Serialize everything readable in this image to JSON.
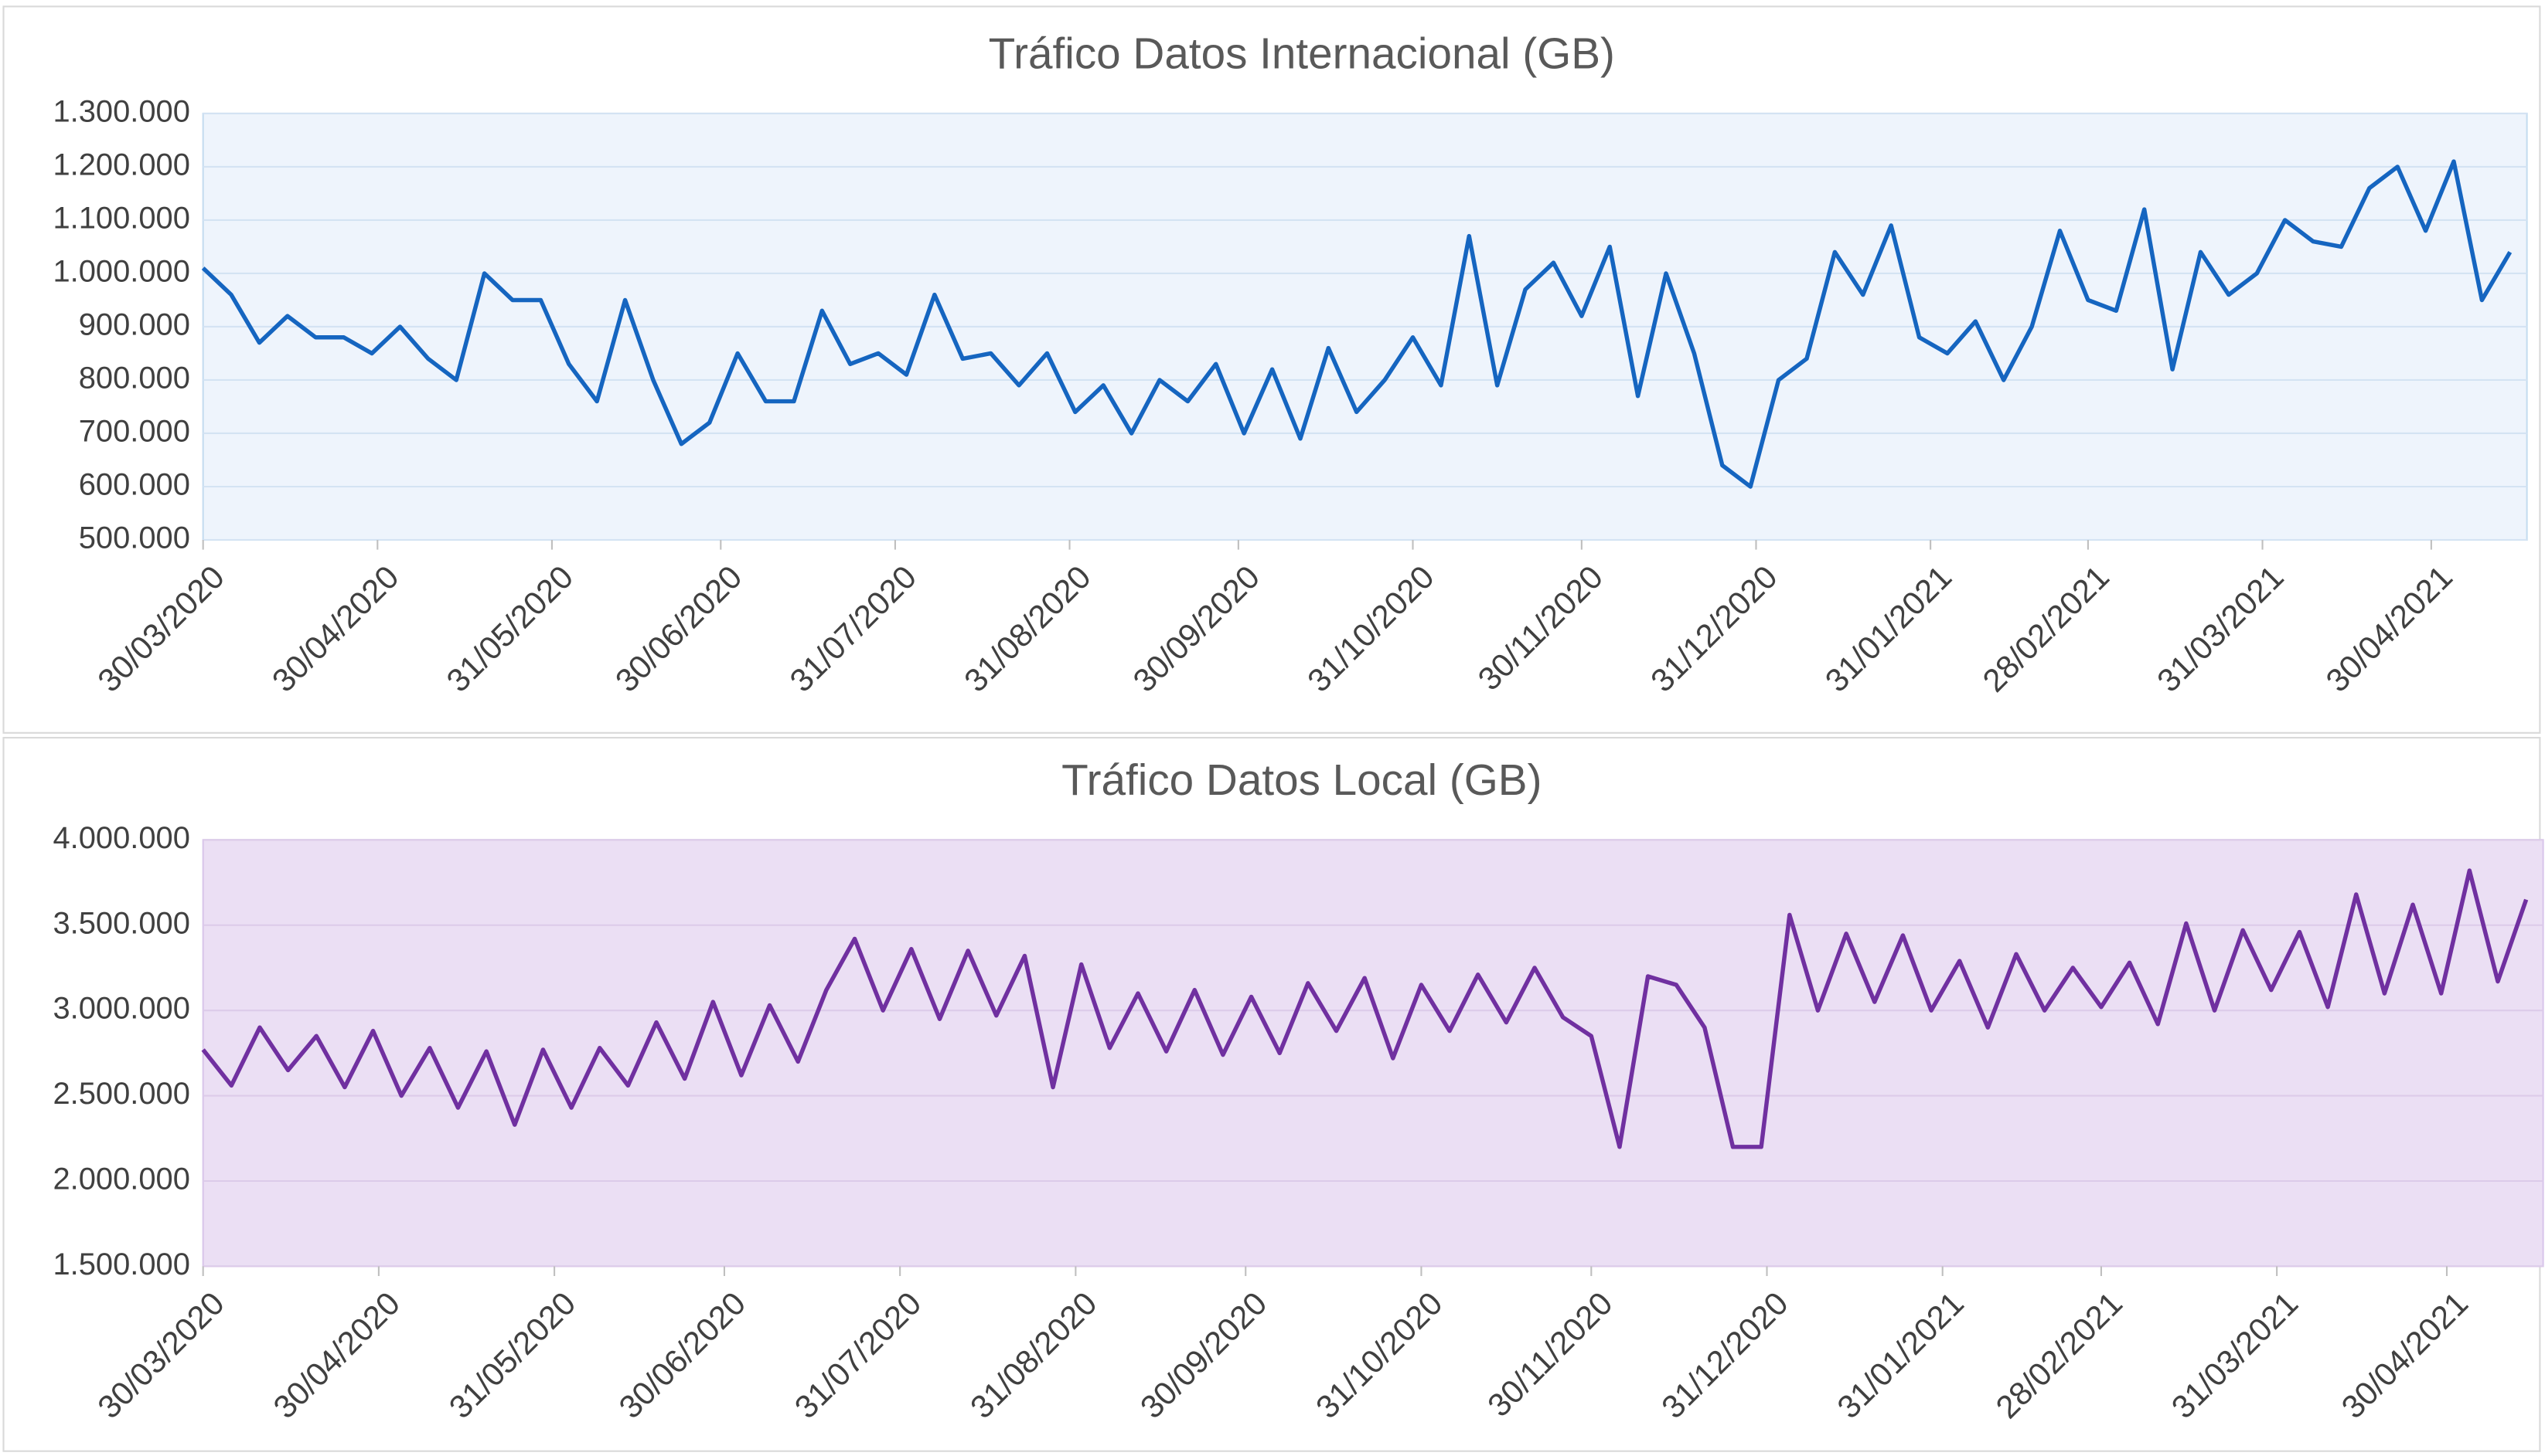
{
  "chart_data": [
    {
      "type": "line",
      "title": "Tráfico Datos  Internacional (GB)",
      "color": "#1565c0",
      "background": "#eef4fc",
      "grid": true,
      "x": [
        "30/03/2020",
        "04/04/2020",
        "09/04/2020",
        "14/04/2020",
        "19/04/2020",
        "24/04/2020",
        "29/04/2020",
        "04/05/2020",
        "09/05/2020",
        "14/05/2020",
        "19/05/2020",
        "24/05/2020",
        "29/05/2020",
        "03/06/2020",
        "08/06/2020",
        "13/06/2020",
        "18/06/2020",
        "23/06/2020",
        "28/06/2020",
        "03/07/2020",
        "08/07/2020",
        "13/07/2020",
        "18/07/2020",
        "23/07/2020",
        "28/07/2020",
        "02/08/2020",
        "07/08/2020",
        "12/08/2020",
        "17/08/2020",
        "22/08/2020",
        "27/08/2020",
        "01/09/2020",
        "06/09/2020",
        "11/09/2020",
        "16/09/2020",
        "21/09/2020",
        "26/09/2020",
        "01/10/2020",
        "06/10/2020",
        "11/10/2020",
        "16/10/2020",
        "21/10/2020",
        "26/10/2020",
        "31/10/2020",
        "05/11/2020",
        "10/11/2020",
        "15/11/2020",
        "20/11/2020",
        "25/11/2020",
        "30/11/2020",
        "05/12/2020",
        "10/12/2020",
        "15/12/2020",
        "20/12/2020",
        "25/12/2020",
        "30/12/2020",
        "04/01/2021",
        "09/01/2021",
        "14/01/2021",
        "19/01/2021",
        "24/01/2021",
        "29/01/2021",
        "03/02/2021",
        "08/02/2021",
        "13/02/2021",
        "18/02/2021",
        "23/02/2021",
        "28/02/2021",
        "05/03/2021",
        "10/03/2021",
        "15/03/2021",
        "20/03/2021",
        "25/03/2021",
        "30/03/2021",
        "04/04/2021",
        "09/04/2021",
        "14/04/2021",
        "19/04/2021",
        "24/04/2021",
        "29/04/2021",
        "04/05/2021",
        "09/05/2021",
        "14/05/2021"
      ],
      "values": [
        1010000,
        960000,
        870000,
        920000,
        880000,
        880000,
        850000,
        900000,
        840000,
        800000,
        1000000,
        950000,
        950000,
        830000,
        760000,
        950000,
        800000,
        680000,
        720000,
        850000,
        760000,
        760000,
        930000,
        830000,
        850000,
        810000,
        960000,
        840000,
        850000,
        790000,
        850000,
        740000,
        790000,
        700000,
        800000,
        760000,
        830000,
        700000,
        820000,
        690000,
        860000,
        740000,
        800000,
        880000,
        790000,
        1070000,
        790000,
        970000,
        1020000,
        920000,
        1050000,
        770000,
        1000000,
        850000,
        640000,
        600000,
        800000,
        840000,
        1040000,
        960000,
        1090000,
        880000,
        850000,
        910000,
        800000,
        900000,
        1080000,
        950000,
        930000,
        1120000,
        820000,
        1040000,
        960000,
        1000000,
        1100000,
        1060000,
        1050000,
        1160000,
        1200000,
        1080000,
        1210000,
        950000,
        1040000
      ],
      "xlim": [
        "30/03/2020",
        "17/05/2021"
      ],
      "xticks": [
        "30/03/2020",
        "30/04/2020",
        "31/05/2020",
        "30/06/2020",
        "31/07/2020",
        "31/08/2020",
        "30/09/2020",
        "31/10/2020",
        "30/11/2020",
        "31/12/2020",
        "31/01/2021",
        "28/02/2021",
        "31/03/2021",
        "30/04/2021"
      ],
      "ylim": [
        500000,
        1300000
      ],
      "yticks": [
        {
          "value": 500000,
          "label": "500.000"
        },
        {
          "value": 600000,
          "label": "600.000"
        },
        {
          "value": 700000,
          "label": "700.000"
        },
        {
          "value": 800000,
          "label": "800.000"
        },
        {
          "value": 900000,
          "label": "900.000"
        },
        {
          "value": 1000000,
          "label": "1.000.000"
        },
        {
          "value": 1100000,
          "label": "1.100.000"
        },
        {
          "value": 1200000,
          "label": "1.200.000"
        },
        {
          "value": 1300000,
          "label": "1.300.000"
        }
      ]
    },
    {
      "type": "line",
      "title": "Tráfico Datos  Local (GB)",
      "color": "#7030a0",
      "background": "#ebdff4",
      "grid": true,
      "x": [
        "30/03/2020",
        "04/04/2020",
        "09/04/2020",
        "14/04/2020",
        "19/04/2020",
        "24/04/2020",
        "29/04/2020",
        "04/05/2020",
        "09/05/2020",
        "14/05/2020",
        "19/05/2020",
        "24/05/2020",
        "29/05/2020",
        "03/06/2020",
        "08/06/2020",
        "13/06/2020",
        "18/06/2020",
        "23/06/2020",
        "28/06/2020",
        "03/07/2020",
        "08/07/2020",
        "13/07/2020",
        "18/07/2020",
        "23/07/2020",
        "28/07/2020",
        "02/08/2020",
        "07/08/2020",
        "12/08/2020",
        "17/08/2020",
        "22/08/2020",
        "27/08/2020",
        "01/09/2020",
        "06/09/2020",
        "11/09/2020",
        "16/09/2020",
        "21/09/2020",
        "26/09/2020",
        "01/10/2020",
        "06/10/2020",
        "11/10/2020",
        "16/10/2020",
        "21/10/2020",
        "26/10/2020",
        "31/10/2020",
        "05/11/2020",
        "10/11/2020",
        "15/11/2020",
        "20/11/2020",
        "25/11/2020",
        "30/11/2020",
        "05/12/2020",
        "10/12/2020",
        "15/12/2020",
        "20/12/2020",
        "25/12/2020",
        "30/12/2020",
        "04/01/2021",
        "09/01/2021",
        "14/01/2021",
        "19/01/2021",
        "24/01/2021",
        "29/01/2021",
        "03/02/2021",
        "08/02/2021",
        "13/02/2021",
        "18/02/2021",
        "23/02/2021",
        "28/02/2021",
        "05/03/2021",
        "10/03/2021",
        "15/03/2021",
        "20/03/2021",
        "25/03/2021",
        "30/03/2021",
        "04/04/2021",
        "09/04/2021",
        "14/04/2021",
        "19/04/2021",
        "24/04/2021",
        "29/04/2021",
        "04/05/2021",
        "09/05/2021",
        "14/05/2021"
      ],
      "values": [
        2770000,
        2560000,
        2900000,
        2650000,
        2850000,
        2550000,
        2880000,
        2500000,
        2780000,
        2430000,
        2760000,
        2330000,
        2770000,
        2430000,
        2780000,
        2560000,
        2930000,
        2600000,
        3050000,
        2620000,
        3030000,
        2700000,
        3120000,
        3420000,
        3000000,
        3360000,
        2950000,
        3350000,
        2970000,
        3320000,
        2550000,
        3270000,
        2780000,
        3100000,
        2760000,
        3120000,
        2740000,
        3080000,
        2750000,
        3160000,
        2880000,
        3190000,
        2720000,
        3150000,
        2880000,
        3210000,
        2930000,
        3250000,
        2960000,
        2850000,
        2200000,
        3200000,
        3150000,
        2900000,
        2200000,
        2200000,
        3560000,
        3000000,
        3450000,
        3050000,
        3440000,
        3000000,
        3290000,
        2900000,
        3330000,
        3000000,
        3250000,
        3020000,
        3280000,
        2920000,
        3510000,
        3000000,
        3470000,
        3120000,
        3460000,
        3020000,
        3680000,
        3100000,
        3620000,
        3100000,
        3820000,
        3170000,
        3650000
      ],
      "xlim": [
        "30/03/2020",
        "17/05/2021"
      ],
      "xticks": [
        "30/03/2020",
        "30/04/2020",
        "31/05/2020",
        "30/06/2020",
        "31/07/2020",
        "31/08/2020",
        "30/09/2020",
        "31/10/2020",
        "30/11/2020",
        "31/12/2020",
        "31/01/2021",
        "28/02/2021",
        "31/03/2021",
        "30/04/2021"
      ],
      "ylim": [
        1500000,
        4000000
      ],
      "yticks": [
        {
          "value": 1500000,
          "label": "1.500.000"
        },
        {
          "value": 2000000,
          "label": "2.000.000"
        },
        {
          "value": 2500000,
          "label": "2.500.000"
        },
        {
          "value": 3000000,
          "label": "3.000.000"
        },
        {
          "value": 3500000,
          "label": "3.500.000"
        },
        {
          "value": 4000000,
          "label": "4.000.000"
        }
      ]
    }
  ]
}
